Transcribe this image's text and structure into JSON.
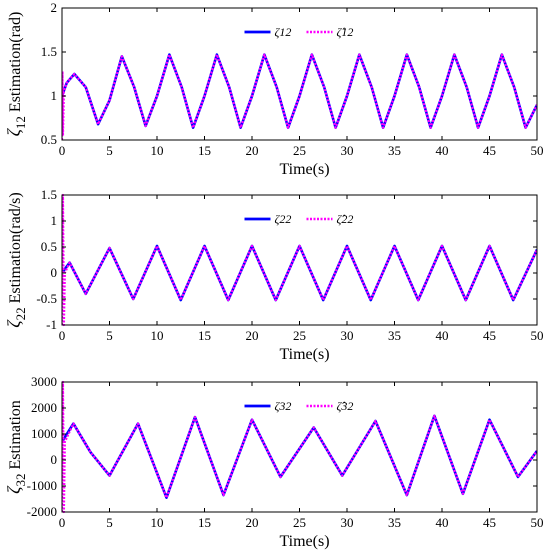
{
  "chart_data": [
    {
      "type": "line",
      "xlabel": "Time(s)",
      "ylabel": "ζ12 Estimation(rad)",
      "ylabel_symbol": "ζ",
      "ylabel_sub": "12",
      "ylabel_rest": " Estimation(rad)",
      "xlim": [
        0,
        50
      ],
      "ylim": [
        0.5,
        2
      ],
      "xticks": [
        0,
        5,
        10,
        15,
        20,
        25,
        30,
        35,
        40,
        45,
        50
      ],
      "yticks": [
        0.5,
        1,
        1.5,
        2
      ],
      "ytick_labels": [
        "0.5",
        "1",
        "1.5",
        "2"
      ],
      "xtick_labels": [
        "0",
        "5",
        "10",
        "15",
        "20",
        "25",
        "30",
        "35",
        "40",
        "45",
        "50"
      ],
      "legend_placement": "top-center",
      "series": [
        {
          "name": "ζ12",
          "color": "#0000ff",
          "style": "solid",
          "x": [
            0,
            0.5,
            1.3,
            2.5,
            3.8,
            5.0,
            6.3,
            7.6,
            8.8,
            10.0,
            11.3,
            12.6,
            13.8,
            15.0,
            16.3,
            17.6,
            18.8,
            20.0,
            21.3,
            22.6,
            23.8,
            25.0,
            26.3,
            27.6,
            28.8,
            30.0,
            31.3,
            32.6,
            33.8,
            35.0,
            36.3,
            37.6,
            38.8,
            40.0,
            41.3,
            42.6,
            43.8,
            45.0,
            46.3,
            47.6,
            48.8,
            50.0
          ],
          "y": [
            1.0,
            1.15,
            1.25,
            1.1,
            0.68,
            0.95,
            1.45,
            1.1,
            0.66,
            1.0,
            1.47,
            1.1,
            0.64,
            1.0,
            1.47,
            1.1,
            0.64,
            1.0,
            1.47,
            1.1,
            0.64,
            1.0,
            1.47,
            1.1,
            0.64,
            1.0,
            1.47,
            1.1,
            0.64,
            1.0,
            1.47,
            1.1,
            0.64,
            1.0,
            1.47,
            1.1,
            0.64,
            1.0,
            1.47,
            1.1,
            0.64,
            0.9
          ]
        },
        {
          "name": "ζ̂12",
          "color": "#ff00ff",
          "style": "dotted",
          "x": [
            0,
            0.05,
            0.1,
            0.2,
            0.5,
            1.3,
            2.5,
            3.8,
            5.0,
            6.3,
            7.6,
            8.8,
            10.0,
            11.3,
            12.6,
            13.8,
            15.0,
            16.3,
            17.6,
            18.8,
            20.0,
            21.3,
            22.6,
            23.8,
            25.0,
            26.3,
            27.6,
            28.8,
            30.0,
            31.3,
            32.6,
            33.8,
            35.0,
            36.3,
            37.6,
            38.8,
            40.0,
            41.3,
            42.6,
            43.8,
            45.0,
            46.3,
            47.6,
            48.8,
            50.0
          ],
          "y": [
            0.5,
            1.28,
            0.55,
            1.05,
            1.15,
            1.25,
            1.1,
            0.68,
            0.95,
            1.45,
            1.1,
            0.66,
            1.0,
            1.47,
            1.1,
            0.64,
            1.0,
            1.47,
            1.1,
            0.64,
            1.0,
            1.47,
            1.1,
            0.64,
            1.0,
            1.47,
            1.1,
            0.64,
            1.0,
            1.47,
            1.1,
            0.64,
            1.0,
            1.47,
            1.1,
            0.64,
            1.0,
            1.47,
            1.1,
            0.64,
            1.0,
            1.47,
            1.1,
            0.64,
            0.9
          ]
        }
      ]
    },
    {
      "type": "line",
      "xlabel": "Time(s)",
      "ylabel": "ζ22 Estimation(rad/s)",
      "ylabel_symbol": "ζ",
      "ylabel_sub": "22",
      "ylabel_rest": " Estimation(rad/s)",
      "xlim": [
        0,
        50
      ],
      "ylim": [
        -1,
        1.5
      ],
      "xticks": [
        0,
        5,
        10,
        15,
        20,
        25,
        30,
        35,
        40,
        45,
        50
      ],
      "yticks": [
        -1,
        -0.5,
        0,
        0.5,
        1,
        1.5
      ],
      "ytick_labels": [
        "-1",
        "-0.5",
        "0",
        "0.5",
        "1",
        "1.5"
      ],
      "xtick_labels": [
        "0",
        "5",
        "10",
        "15",
        "20",
        "25",
        "30",
        "35",
        "40",
        "45",
        "50"
      ],
      "legend_placement": "top-center",
      "series": [
        {
          "name": "ζ22",
          "color": "#0000ff",
          "style": "solid",
          "x": [
            0,
            0.8,
            2.5,
            5.0,
            7.5,
            10.0,
            12.5,
            15.0,
            17.5,
            20.0,
            22.5,
            25.0,
            27.5,
            30.0,
            32.5,
            35.0,
            37.5,
            40.0,
            42.5,
            45.0,
            47.5,
            50.0
          ],
          "y": [
            0.0,
            0.2,
            -0.4,
            0.48,
            -0.5,
            0.52,
            -0.52,
            0.52,
            -0.52,
            0.52,
            -0.52,
            0.52,
            -0.52,
            0.52,
            -0.52,
            0.52,
            -0.52,
            0.52,
            -0.52,
            0.52,
            -0.52,
            0.45
          ]
        },
        {
          "name": "ζ̂22",
          "color": "#ff00ff",
          "style": "dotted",
          "x": [
            0,
            0.1,
            0.2,
            0.3,
            0.8,
            2.5,
            5.0,
            7.5,
            10.0,
            12.5,
            15.0,
            17.5,
            20.0,
            22.5,
            25.0,
            27.5,
            30.0,
            32.5,
            35.0,
            37.5,
            40.0,
            42.5,
            45.0,
            47.5,
            50.0
          ],
          "y": [
            -1.0,
            1.5,
            -1.0,
            0.0,
            0.2,
            -0.4,
            0.48,
            -0.5,
            0.52,
            -0.52,
            0.52,
            -0.52,
            0.52,
            -0.52,
            0.52,
            -0.52,
            0.52,
            -0.52,
            0.52,
            -0.52,
            0.52,
            -0.52,
            0.52,
            -0.52,
            0.45
          ]
        }
      ]
    },
    {
      "type": "line",
      "xlabel": "Time(s)",
      "ylabel": "ζ32 Estimation",
      "ylabel_symbol": "ζ",
      "ylabel_sub": "32",
      "ylabel_rest": " Estimation",
      "xlim": [
        0,
        50
      ],
      "ylim": [
        -2000,
        3000
      ],
      "xticks": [
        0,
        5,
        10,
        15,
        20,
        25,
        30,
        35,
        40,
        45,
        50
      ],
      "yticks": [
        -2000,
        -1000,
        0,
        1000,
        2000,
        3000
      ],
      "ytick_labels": [
        "-2000",
        "-1000",
        "0",
        "1000",
        "2000",
        "3000"
      ],
      "xtick_labels": [
        "0",
        "5",
        "10",
        "15",
        "20",
        "25",
        "30",
        "35",
        "40",
        "45",
        "50"
      ],
      "legend_placement": "top-center",
      "series": [
        {
          "name": "ζ32",
          "color": "#0000ff",
          "style": "solid",
          "x": [
            0,
            1.2,
            3.0,
            5.0,
            8.0,
            11.0,
            14.0,
            17.0,
            20.0,
            23.0,
            26.5,
            29.5,
            33.0,
            36.3,
            39.2,
            42.2,
            45.0,
            48.0,
            50.0
          ],
          "y": [
            700,
            1400,
            300,
            -600,
            1400,
            -1450,
            1650,
            -1350,
            1550,
            -650,
            1250,
            -600,
            1500,
            -1350,
            1700,
            -1300,
            1550,
            -650,
            350
          ]
        },
        {
          "name": "ζ̂32",
          "color": "#ff00ff",
          "style": "dotted",
          "x": [
            0,
            0.1,
            0.2,
            0.3,
            1.2,
            3.0,
            5.0,
            8.0,
            11.0,
            14.0,
            17.0,
            20.0,
            23.0,
            26.5,
            29.5,
            33.0,
            36.3,
            39.2,
            42.2,
            45.0,
            48.0,
            50.0
          ],
          "y": [
            -2000,
            3000,
            -2000,
            700,
            1400,
            300,
            -600,
            1400,
            -1450,
            1650,
            -1350,
            1550,
            -650,
            1250,
            -600,
            1500,
            -1350,
            1700,
            -1300,
            1550,
            -650,
            350
          ]
        }
      ]
    }
  ]
}
